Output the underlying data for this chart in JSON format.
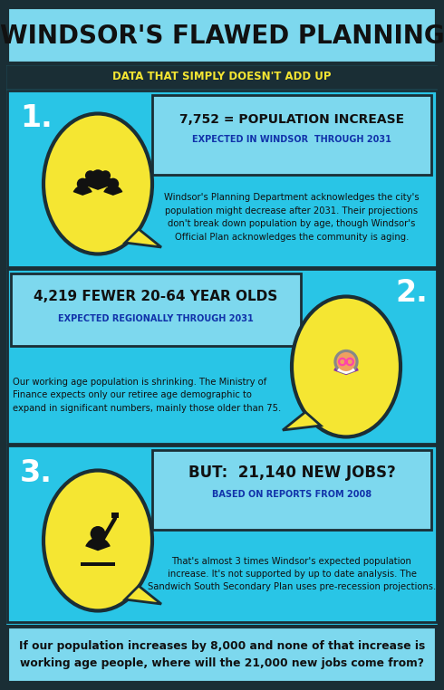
{
  "title": "WINDSOR'S FLAWED PLANNING",
  "subtitle": "DATA THAT SIMPLY DOESN'T ADD UP",
  "bg_color": "#29C5E6",
  "dark_color": "#1A2E35",
  "light_box_color": "#7DD8EE",
  "yellow": "#F5E632",
  "white": "#FFFFFF",
  "dark_text": "#111111",
  "blue_label": "#1133AA",
  "section1_num": "1.",
  "section1_stat": "7,752 = POPULATION INCREASE",
  "section1_sublabel": "EXPECTED IN WINDSOR  THROUGH 2031",
  "section1_body": "Windsor's Planning Department acknowledges the city's\npopulation might decrease after 2031. Their projections\ndon't break down population by age, though Windsor's\nOfficial Plan acknowledges the community is aging.",
  "section2_num": "2.",
  "section2_stat": "4,219 FEWER 20-64 YEAR OLDS",
  "section2_sublabel": "EXPECTED REGIONALLY THROUGH 2031",
  "section2_body": "Our working age population is shrinking. The Ministry of\nFinance expects only our retiree age demographic to\nexpand in significant numbers, mainly those older than 75.",
  "section3_num": "3.",
  "section3_stat": "BUT:  21,140 NEW JOBS?",
  "section3_sublabel": "BASED ON REPORTS FROM 2008",
  "section3_body": "That's almost 3 times Windsor's expected population\nincrease. It's not supported by up to date analysis. The\nSandwich South Secondary Plan uses pre-recession projections.",
  "footer": "If our population increases by 8,000 and none of that increase is\nworking age people, where will the 21,000 new jobs come from?"
}
